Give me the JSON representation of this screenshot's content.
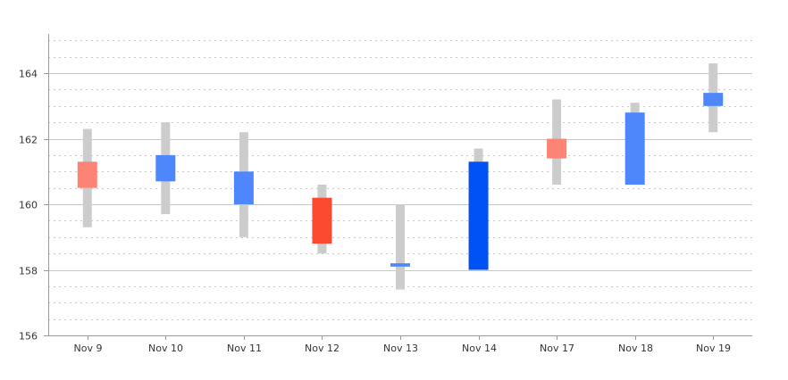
{
  "chart_data": {
    "type": "candlestick",
    "categories": [
      "Nov 9",
      "Nov 10",
      "Nov 11",
      "Nov 12",
      "Nov 13",
      "Nov 14",
      "Nov 17",
      "Nov 18",
      "Nov 19"
    ],
    "series": [
      {
        "open": [
          161.3,
          160.7,
          160.0,
          160.2,
          158.1,
          158.0,
          162.0,
          160.6,
          163.0
        ],
        "high": [
          162.3,
          162.5,
          162.2,
          160.6,
          160.0,
          161.7,
          163.2,
          163.1,
          164.3
        ],
        "low": [
          159.3,
          159.7,
          159.0,
          158.5,
          157.4,
          158.0,
          160.6,
          160.6,
          162.2
        ],
        "close": [
          160.5,
          161.5,
          161.0,
          158.8,
          158.2,
          161.3,
          161.4,
          162.8,
          163.4
        ]
      }
    ],
    "ylim": [
      156,
      165.2
    ],
    "y_ticks": [
      156,
      158,
      160,
      162,
      164
    ],
    "grid": true,
    "legend": "none",
    "colors": {
      "up_colors": [
        "#4e87fb",
        "#4e87fb",
        "#4e87fb",
        "#4e87fb",
        "#4e87fb",
        "#0052f5",
        "#4e87fb",
        "#4e87fb",
        "#4e87fb"
      ],
      "down_colors": [
        "#fd8474",
        "#fd8474",
        "#fd8474",
        "#fc4a31",
        "#fd8474",
        "#fd8474",
        "#fd8474",
        "#fd8474",
        "#fd8474"
      ],
      "wick": "#cccccc",
      "grid_major": "#c8c8c8",
      "grid_minor": "#c8c8c8",
      "axis": "#999999"
    }
  }
}
